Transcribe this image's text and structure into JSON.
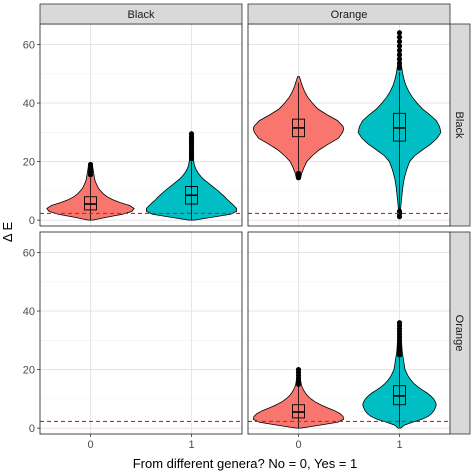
{
  "chart_data": {
    "type": "violin",
    "xlabel": "From different genera? No = 0, Yes = 1",
    "ylabel": "Δ E",
    "categories": [
      "0",
      "1"
    ],
    "ylim": [
      -2,
      67
    ],
    "yticks": [
      0,
      20,
      40,
      60
    ],
    "ytick_labels": [
      "0",
      "20",
      "40",
      "60"
    ],
    "grid": true,
    "legend": "none",
    "colors": {
      "0": "#F8766D",
      "1": "#00BFC4",
      "threshold": "#E41A1C",
      "strip": "#D9D9D9"
    },
    "reference_line": {
      "y": 2.3,
      "style": "dashed"
    },
    "col_facets": [
      "Black",
      "Orange"
    ],
    "row_facets": [
      "Black",
      "Orange"
    ],
    "panels": [
      {
        "col": "Black",
        "row": "Black",
        "groups": [
          {
            "x": "0",
            "min": 0,
            "q1": 3.5,
            "median": 5.5,
            "q3": 8,
            "max": 14.5,
            "outliers": [
              15.5,
              16.5,
              17.5,
              18.3,
              19
            ],
            "density": [
              [
                0,
                0.05
              ],
              [
                1,
                0.35
              ],
              [
                2,
                0.7
              ],
              [
                3,
                0.9
              ],
              [
                4,
                0.95
              ],
              [
                5,
                0.85
              ],
              [
                6,
                0.65
              ],
              [
                7,
                0.48
              ],
              [
                8,
                0.36
              ],
              [
                9,
                0.28
              ],
              [
                10,
                0.22
              ],
              [
                11,
                0.17
              ],
              [
                12,
                0.14
              ],
              [
                13,
                0.11
              ],
              [
                14,
                0.09
              ],
              [
                15,
                0.08
              ],
              [
                16,
                0.07
              ],
              [
                17,
                0.06
              ],
              [
                18,
                0.05
              ],
              [
                19,
                0.03
              ]
            ]
          },
          {
            "x": "1",
            "min": 0,
            "q1": 5.5,
            "median": 8.5,
            "q3": 11.5,
            "max": 20,
            "outliers": [
              21,
              21.8,
              22.5,
              23.3,
              24,
              24.8,
              25.5,
              26.3,
              27,
              27.8,
              28.6,
              29.5
            ],
            "density": [
              [
                0,
                0.06
              ],
              [
                1,
                0.45
              ],
              [
                2,
                0.85
              ],
              [
                3,
                0.98
              ],
              [
                4,
                0.98
              ],
              [
                5,
                0.92
              ],
              [
                6,
                0.85
              ],
              [
                7,
                0.78
              ],
              [
                8,
                0.72
              ],
              [
                9,
                0.65
              ],
              [
                10,
                0.58
              ],
              [
                11,
                0.5
              ],
              [
                12,
                0.42
              ],
              [
                13,
                0.34
              ],
              [
                14,
                0.26
              ],
              [
                15,
                0.2
              ],
              [
                16,
                0.15
              ],
              [
                17,
                0.11
              ],
              [
                18,
                0.08
              ],
              [
                19,
                0.06
              ],
              [
                20,
                0.05
              ],
              [
                21,
                0.04
              ],
              [
                22,
                0.04
              ],
              [
                23,
                0.03
              ],
              [
                24,
                0.03
              ],
              [
                25,
                0.03
              ],
              [
                26,
                0.02
              ],
              [
                27,
                0.02
              ],
              [
                28,
                0.02
              ],
              [
                29,
                0.02
              ],
              [
                30,
                0.01
              ]
            ]
          }
        ]
      },
      {
        "col": "Orange",
        "row": "Black",
        "groups": [
          {
            "x": "0",
            "min": 17,
            "q1": 28.5,
            "median": 31.5,
            "q3": 34.5,
            "max": 47,
            "outliers": [
              14.5,
              15.3,
              16
            ],
            "density": [
              [
                14,
                0.04
              ],
              [
                16,
                0.07
              ],
              [
                18,
                0.12
              ],
              [
                20,
                0.18
              ],
              [
                22,
                0.3
              ],
              [
                24,
                0.45
              ],
              [
                26,
                0.65
              ],
              [
                28,
                0.87
              ],
              [
                30,
                0.96
              ],
              [
                31,
                0.98
              ],
              [
                32,
                0.97
              ],
              [
                34,
                0.85
              ],
              [
                36,
                0.62
              ],
              [
                38,
                0.42
              ],
              [
                40,
                0.3
              ],
              [
                42,
                0.2
              ],
              [
                44,
                0.13
              ],
              [
                46,
                0.08
              ],
              [
                48,
                0.04
              ],
              [
                49,
                0.02
              ]
            ]
          },
          {
            "x": "1",
            "min": 3.5,
            "q1": 27,
            "median": 31.5,
            "q3": 36.5,
            "max": 50.5,
            "outliers": [
              1.2,
              2.2,
              3,
              52,
              53.5,
              55,
              56.5,
              58,
              59.5,
              61,
              62.5,
              64
            ],
            "density": [
              [
                1,
                0.01
              ],
              [
                3,
                0.02
              ],
              [
                5,
                0.03
              ],
              [
                8,
                0.05
              ],
              [
                11,
                0.07
              ],
              [
                14,
                0.1
              ],
              [
                17,
                0.15
              ],
              [
                20,
                0.22
              ],
              [
                22,
                0.33
              ],
              [
                24,
                0.5
              ],
              [
                26,
                0.68
              ],
              [
                28,
                0.82
              ],
              [
                30,
                0.9
              ],
              [
                32,
                0.87
              ],
              [
                34,
                0.8
              ],
              [
                36,
                0.66
              ],
              [
                38,
                0.5
              ],
              [
                40,
                0.38
              ],
              [
                42,
                0.28
              ],
              [
                44,
                0.2
              ],
              [
                46,
                0.14
              ],
              [
                48,
                0.1
              ],
              [
                50,
                0.07
              ],
              [
                53,
                0.04
              ],
              [
                56,
                0.03
              ],
              [
                59,
                0.02
              ],
              [
                62,
                0.015
              ],
              [
                64,
                0.01
              ]
            ]
          }
        ]
      },
      {
        "col": "Black",
        "row": "Orange",
        "groups": []
      },
      {
        "col": "Orange",
        "row": "Orange",
        "groups": [
          {
            "x": "0",
            "min": 0,
            "q1": 3.5,
            "median": 5.5,
            "q3": 8,
            "max": 14.5,
            "outliers": [
              15,
              16,
              17,
              18,
              19,
              20
            ],
            "density": [
              [
                0,
                0.05
              ],
              [
                1,
                0.45
              ],
              [
                2,
                0.85
              ],
              [
                3,
                0.98
              ],
              [
                4,
                0.97
              ],
              [
                5,
                0.9
              ],
              [
                6,
                0.78
              ],
              [
                7,
                0.62
              ],
              [
                8,
                0.48
              ],
              [
                9,
                0.36
              ],
              [
                10,
                0.27
              ],
              [
                11,
                0.2
              ],
              [
                12,
                0.15
              ],
              [
                13,
                0.11
              ],
              [
                14,
                0.08
              ],
              [
                15,
                0.06
              ],
              [
                16,
                0.05
              ],
              [
                17,
                0.04
              ],
              [
                18,
                0.03
              ],
              [
                19,
                0.02
              ],
              [
                20,
                0.01
              ]
            ]
          },
          {
            "x": "1",
            "min": 0.5,
            "q1": 8,
            "median": 11,
            "q3": 14.5,
            "max": 24,
            "outliers": [
              25,
              26,
              27,
              28,
              29,
              30,
              31,
              32,
              33,
              34,
              35,
              36
            ],
            "density": [
              [
                0,
                0.03
              ],
              [
                1,
                0.1
              ],
              [
                2,
                0.28
              ],
              [
                3,
                0.48
              ],
              [
                4,
                0.62
              ],
              [
                5,
                0.7
              ],
              [
                6,
                0.75
              ],
              [
                7,
                0.78
              ],
              [
                8,
                0.8
              ],
              [
                9,
                0.78
              ],
              [
                10,
                0.74
              ],
              [
                11,
                0.68
              ],
              [
                12,
                0.6
              ],
              [
                13,
                0.5
              ],
              [
                14,
                0.41
              ],
              [
                15,
                0.33
              ],
              [
                16,
                0.27
              ],
              [
                17,
                0.22
              ],
              [
                18,
                0.18
              ],
              [
                19,
                0.15
              ],
              [
                20,
                0.12
              ],
              [
                22,
                0.1
              ],
              [
                24,
                0.08
              ],
              [
                26,
                0.06
              ],
              [
                28,
                0.05
              ],
              [
                30,
                0.04
              ],
              [
                32,
                0.03
              ],
              [
                34,
                0.02
              ],
              [
                36,
                0.01
              ]
            ]
          }
        ]
      }
    ]
  }
}
